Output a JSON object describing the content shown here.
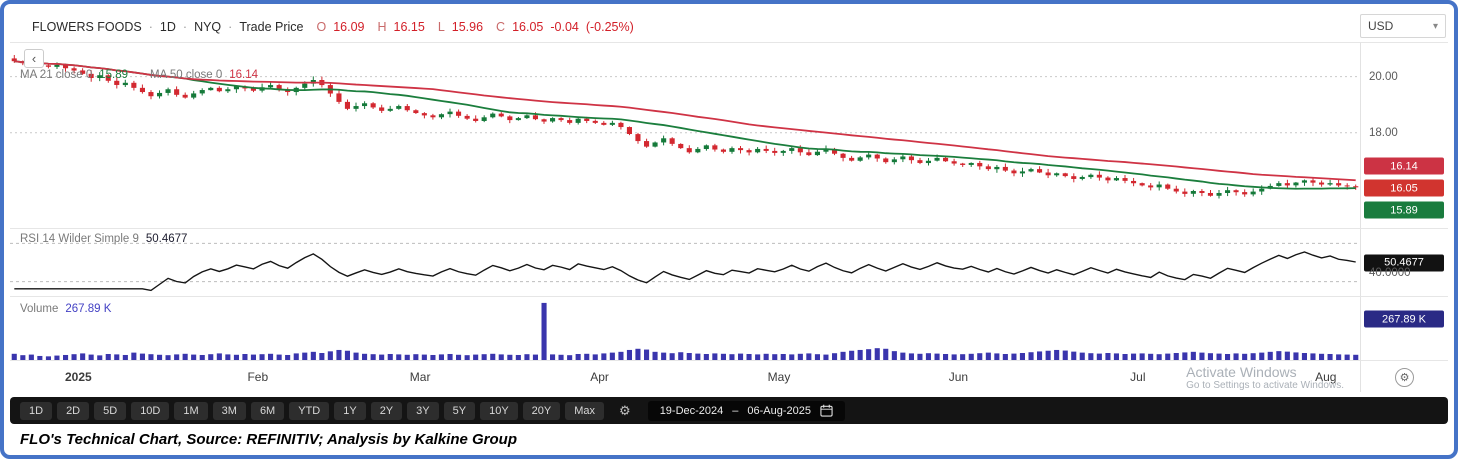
{
  "header": {
    "symbol": "FLOWERS FOODS",
    "sep": "·",
    "interval": "1D",
    "exchange": "NYQ",
    "series_label": "Trade Price",
    "ohlc": {
      "o_label": "O",
      "o": "16.09",
      "h_label": "H",
      "h": "16.15",
      "l_label": "L",
      "l": "15.96",
      "c_label": "C",
      "c": "16.05",
      "change": "-0.04",
      "change_pct": "(-0.25%)"
    }
  },
  "currency_selector": {
    "value": "USD"
  },
  "icons": {
    "gear": "⚙",
    "caret": "▾",
    "back": "‹"
  },
  "legends": {
    "ma21": {
      "name": "MA 21 close 0",
      "value": "15.89"
    },
    "ma50": {
      "name": "MA 50 close 0",
      "value": "16.14"
    },
    "rsi": {
      "name": "RSI 14 Wilder Simple 9",
      "value": "50.4677"
    },
    "volume": {
      "name": "Volume",
      "value": "267.89 K"
    }
  },
  "price_axis": {
    "labels": [
      "20.00",
      "18.00"
    ],
    "badges": [
      {
        "value": "16.14",
        "color": "#cc3344"
      },
      {
        "value": "16.05",
        "color": "#d1342f"
      },
      {
        "value": "15.89",
        "color": "#1a7c3e"
      }
    ]
  },
  "rsi_axis": {
    "badge": {
      "value": "50.4677",
      "color": "#121212"
    },
    "label": "40.0000"
  },
  "volume_axis": {
    "badge": {
      "value": "267.89 K",
      "color": "#2a2a85"
    }
  },
  "toolbar": {
    "ranges": [
      "1D",
      "2D",
      "5D",
      "10D",
      "1M",
      "3M",
      "6M",
      "YTD",
      "1Y",
      "2Y",
      "3Y",
      "5Y",
      "10Y",
      "20Y",
      "Max"
    ],
    "date_start": "19-Dec-2024",
    "date_sep": "–",
    "date_end": "06-Aug-2025"
  },
  "watermark": {
    "line1": "Activate Windows",
    "line2": "Go to Settings to activate Windows."
  },
  "caption": "FLO's Technical Chart, Source: REFINITIV; Analysis by Kalkine Group",
  "chart_data": [
    {
      "type": "candlestick",
      "title": "FLOWERS FOODS 1D NYQ Trade Price",
      "x_range": [
        "19-Dec-2024",
        "06-Aug-2025"
      ],
      "ylim": [
        14.6,
        21.2
      ],
      "gridlines": [
        20,
        18
      ],
      "up_color": "#157a3a",
      "down_color": "#d32830",
      "ma21_color": "#1b7e3d",
      "ma50_color": "#cf3345",
      "ma21_last": 15.89,
      "ma50_last": 16.14,
      "last_ohlc": {
        "open": 16.09,
        "high": 16.15,
        "low": 15.96,
        "close": 16.05
      },
      "month_ticks": [
        {
          "label": "2025",
          "index": 8,
          "bold": true
        },
        {
          "label": "Feb",
          "index": 29
        },
        {
          "label": "Mar",
          "index": 48
        },
        {
          "label": "Apr",
          "index": 69
        },
        {
          "label": "May",
          "index": 90
        },
        {
          "label": "Jun",
          "index": 111
        },
        {
          "label": "Jul",
          "index": 132
        },
        {
          "label": "Aug",
          "index": 154
        }
      ],
      "closes": [
        20.55,
        20.48,
        20.52,
        20.4,
        20.35,
        20.42,
        20.3,
        20.22,
        20.1,
        19.95,
        20.05,
        19.85,
        19.7,
        19.78,
        19.6,
        19.45,
        19.3,
        19.42,
        19.55,
        19.35,
        19.25,
        19.4,
        19.52,
        19.6,
        19.48,
        19.55,
        19.65,
        19.58,
        19.5,
        19.62,
        19.7,
        19.55,
        19.45,
        19.6,
        19.75,
        19.88,
        19.7,
        19.4,
        19.1,
        18.85,
        18.95,
        19.05,
        18.9,
        18.78,
        18.85,
        18.95,
        18.8,
        18.7,
        18.62,
        18.55,
        18.66,
        18.75,
        18.6,
        18.5,
        18.42,
        18.55,
        18.68,
        18.58,
        18.45,
        18.52,
        18.62,
        18.48,
        18.4,
        18.52,
        18.45,
        18.35,
        18.5,
        18.42,
        18.35,
        18.28,
        18.35,
        18.2,
        17.95,
        17.7,
        17.5,
        17.65,
        17.8,
        17.6,
        17.45,
        17.3,
        17.42,
        17.55,
        17.4,
        17.32,
        17.45,
        17.38,
        17.3,
        17.42,
        17.35,
        17.28,
        17.35,
        17.45,
        17.3,
        17.2,
        17.32,
        17.42,
        17.25,
        17.1,
        17.0,
        17.12,
        17.22,
        17.08,
        16.95,
        17.05,
        17.15,
        17.02,
        16.92,
        17.0,
        17.1,
        16.98,
        16.9,
        16.85,
        16.92,
        16.8,
        16.7,
        16.78,
        16.65,
        16.55,
        16.62,
        16.7,
        16.58,
        16.48,
        16.55,
        16.45,
        16.35,
        16.42,
        16.5,
        16.4,
        16.3,
        16.38,
        16.28,
        16.2,
        16.12,
        16.05,
        16.15,
        16.0,
        15.9,
        15.82,
        15.92,
        15.85,
        15.75,
        15.85,
        15.95,
        15.88,
        15.8,
        15.9,
        16.0,
        16.1,
        16.2,
        16.12,
        16.22,
        16.3,
        16.22,
        16.15,
        16.2,
        16.12,
        16.09,
        16.05
      ]
    },
    {
      "type": "line",
      "name": "RSI 14 Wilder Simple 9",
      "last": 50.4677,
      "axis_label": 40.0,
      "ylim": [
        15,
        85
      ],
      "gridlines": [
        70,
        30
      ]
    },
    {
      "type": "bar",
      "name": "Volume",
      "unit": "K",
      "last": 267.89,
      "color": "#3a35ad",
      "values": [
        320,
        250,
        280,
        210,
        190,
        230,
        260,
        300,
        340,
        280,
        240,
        310,
        290,
        260,
        380,
        330,
        300,
        270,
        250,
        290,
        320,
        280,
        260,
        300,
        340,
        290,
        270,
        310,
        280,
        300,
        320,
        280,
        260,
        340,
        380,
        420,
        360,
        450,
        520,
        480,
        380,
        320,
        300,
        280,
        310,
        290,
        270,
        300,
        280,
        260,
        290,
        310,
        270,
        250,
        280,
        300,
        320,
        290,
        270,
        260,
        300,
        280,
        2950,
        290,
        270,
        250,
        310,
        320,
        290,
        340,
        380,
        420,
        520,
        580,
        540,
        420,
        380,
        350,
        400,
        360,
        330,
        310,
        340,
        320,
        300,
        330,
        310,
        290,
        320,
        300,
        310,
        290,
        320,
        340,
        300,
        280,
        350,
        420,
        480,
        520,
        560,
        610,
        580,
        460,
        380,
        340,
        320,
        350,
        330,
        310,
        290,
        300,
        320,
        350,
        380,
        340,
        310,
        330,
        360,
        400,
        440,
        480,
        520,
        490,
        430,
        380,
        350,
        330,
        360,
        340,
        310,
        330,
        340,
        320,
        300,
        330,
        360,
        390,
        420,
        380,
        350,
        330,
        310,
        340,
        320,
        350,
        380,
        420,
        460,
        430,
        390,
        360,
        340,
        320,
        310,
        290,
        280,
        267.89
      ]
    }
  ]
}
